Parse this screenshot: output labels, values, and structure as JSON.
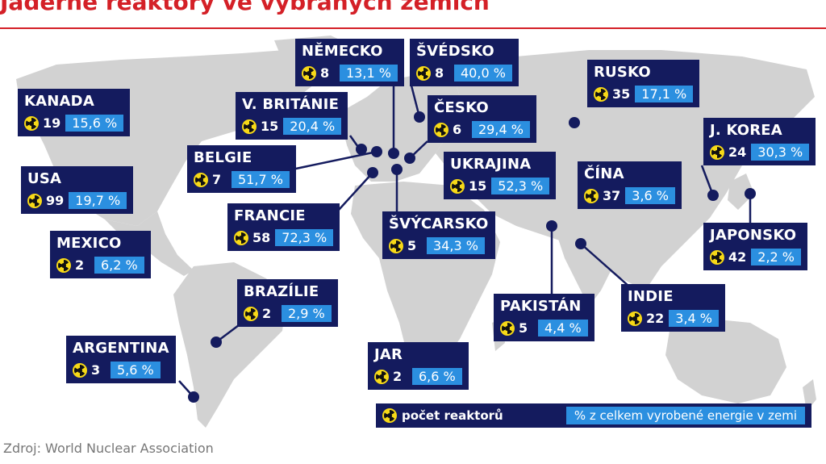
{
  "title": "Jaderné reaktory ve vybraných zemích",
  "source": "Zdroj: World Nuclear Association",
  "legend": {
    "reactors_label": "počet reaktorů",
    "percent_label": "% z celkem vyrobené energie v zemi"
  },
  "icon": "radiation-icon",
  "colors": {
    "card": "#141b5e",
    "percent": "#2b8fe0",
    "land": "#d2d2d2",
    "accent": "#d42027"
  },
  "countries": [
    {
      "name": "NĚMECKO",
      "reactors": "8",
      "percent": "13,1 %"
    },
    {
      "name": "ŠVÉDSKO",
      "reactors": "8",
      "percent": "40,0 %"
    },
    {
      "name": "RUSKO",
      "reactors": "35",
      "percent": "17,1 %"
    },
    {
      "name": "KANADA",
      "reactors": "19",
      "percent": "15,6 %"
    },
    {
      "name": "V. BRITÁNIE",
      "reactors": "15",
      "percent": "20,4 %"
    },
    {
      "name": "ČESKO",
      "reactors": "6",
      "percent": "29,4 %"
    },
    {
      "name": "J. KOREA",
      "reactors": "24",
      "percent": "30,3 %"
    },
    {
      "name": "BELGIE",
      "reactors": "7",
      "percent": "51,7 %"
    },
    {
      "name": "USA",
      "reactors": "99",
      "percent": "19,7 %"
    },
    {
      "name": "UKRAJINA",
      "reactors": "15",
      "percent": "52,3 %"
    },
    {
      "name": "ČÍNA",
      "reactors": "37",
      "percent": "3,6 %"
    },
    {
      "name": "FRANCIE",
      "reactors": "58",
      "percent": "72,3 %"
    },
    {
      "name": "ŠVÝCARSKO",
      "reactors": "5",
      "percent": "34,3 %"
    },
    {
      "name": "MEXICO",
      "reactors": "2",
      "percent": "6,2 %"
    },
    {
      "name": "JAPONSKO",
      "reactors": "42",
      "percent": "2,2 %"
    },
    {
      "name": "BRAZÍLIE",
      "reactors": "2",
      "percent": "2,9 %"
    },
    {
      "name": "PAKISTÁN",
      "reactors": "5",
      "percent": "4,4 %"
    },
    {
      "name": "INDIE",
      "reactors": "22",
      "percent": "3,4 %"
    },
    {
      "name": "ARGENTINA",
      "reactors": "3",
      "percent": "5,6 %"
    },
    {
      "name": "JAR",
      "reactors": "2",
      "percent": "6,6 %"
    }
  ]
}
